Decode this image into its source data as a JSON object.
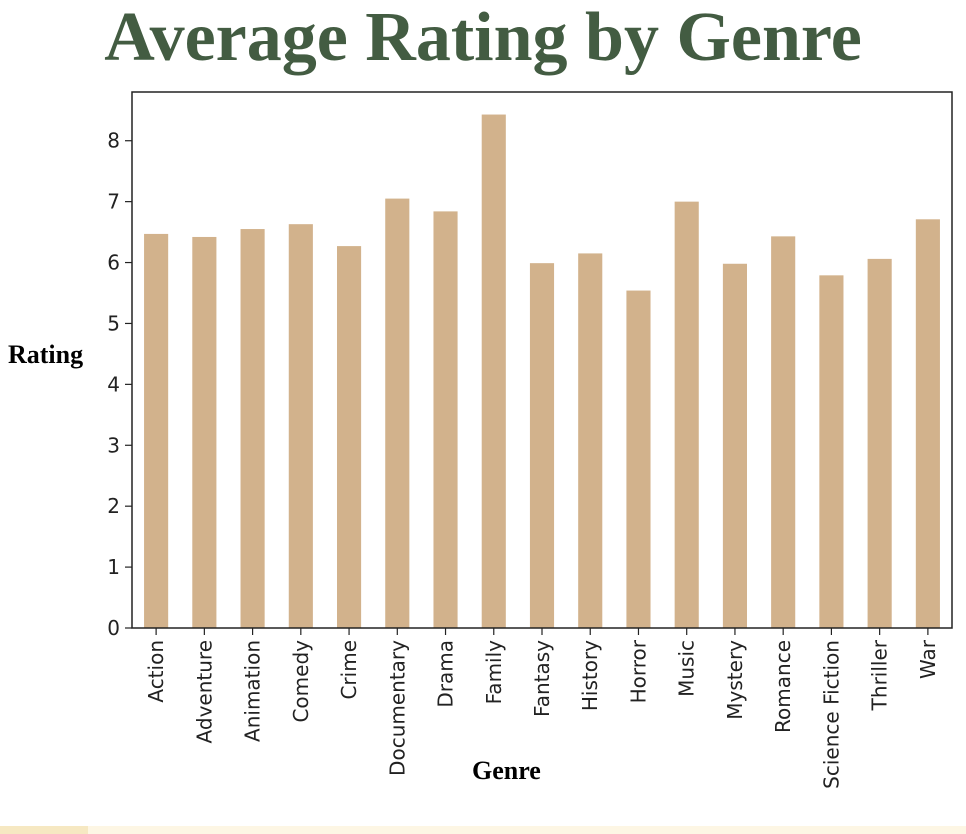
{
  "chart_data": {
    "type": "bar",
    "title": "Average Rating by Genre",
    "xlabel": "Genre",
    "ylabel": "Rating",
    "categories": [
      "Action",
      "Adventure",
      "Animation",
      "Comedy",
      "Crime",
      "Documentary",
      "Drama",
      "Family",
      "Fantasy",
      "History",
      "Horror",
      "Music",
      "Mystery",
      "Romance",
      "Science Fiction",
      "Thriller",
      "War"
    ],
    "values": [
      6.47,
      6.42,
      6.55,
      6.63,
      6.27,
      7.05,
      6.84,
      8.43,
      5.99,
      6.15,
      5.54,
      7.0,
      5.98,
      6.43,
      5.79,
      6.06,
      6.71
    ],
    "ylim": [
      0,
      8.8
    ],
    "yticks": [
      0,
      1,
      2,
      3,
      4,
      5,
      6,
      7,
      8
    ],
    "bar_color": "#d2b28c",
    "grid": false,
    "legend": "none"
  }
}
